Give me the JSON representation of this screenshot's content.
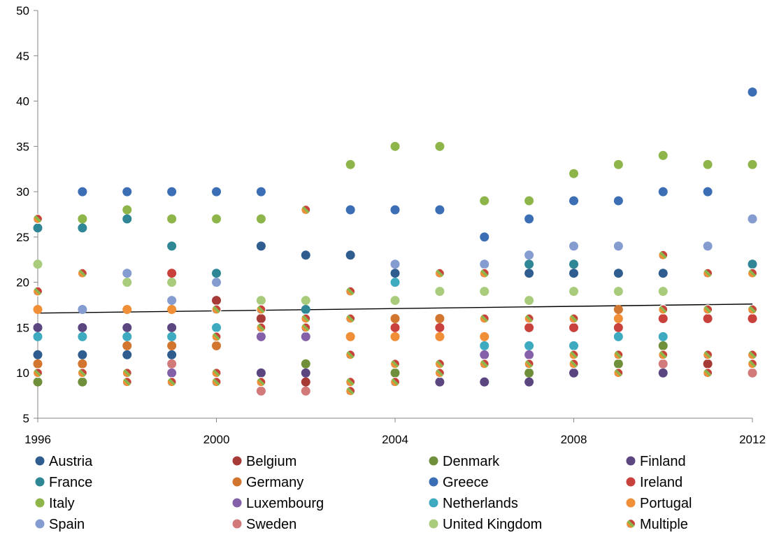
{
  "chart_data": {
    "type": "scatter",
    "title": "",
    "xlabel": "",
    "ylabel": "",
    "xlim": [
      1996,
      2012
    ],
    "ylim": [
      5,
      50
    ],
    "x_ticks": [
      1996,
      2000,
      2004,
      2008,
      2012
    ],
    "y_ticks": [
      5,
      10,
      15,
      20,
      25,
      30,
      35,
      40,
      45,
      50
    ],
    "grid": false,
    "legend_position": "bottom",
    "trendline": {
      "x": [
        1996,
        2012
      ],
      "y": [
        16.6,
        17.6
      ],
      "color": "#000000"
    },
    "series": [
      {
        "name": "Austria",
        "color": "#2f5d8f",
        "points": [
          [
            1996,
            12
          ],
          [
            1997,
            12
          ],
          [
            1998,
            12
          ],
          [
            1999,
            12
          ],
          [
            2001,
            24
          ],
          [
            2002,
            23
          ],
          [
            2003,
            23
          ],
          [
            2004,
            21
          ],
          [
            2007,
            21
          ],
          [
            2008,
            21
          ],
          [
            2009,
            21
          ],
          [
            2010,
            21
          ]
        ]
      },
      {
        "name": "Belgium",
        "color": "#a63a37",
        "points": [
          [
            2000,
            18
          ],
          [
            2001,
            16
          ],
          [
            2002,
            9
          ],
          [
            2011,
            11
          ]
        ]
      },
      {
        "name": "Denmark",
        "color": "#6f8f3a",
        "points": [
          [
            1996,
            9
          ],
          [
            1997,
            9
          ],
          [
            2002,
            11
          ],
          [
            2004,
            10
          ],
          [
            2007,
            10
          ],
          [
            2009,
            11
          ],
          [
            2010,
            13
          ]
        ]
      },
      {
        "name": "Finland",
        "color": "#5c4680",
        "points": [
          [
            1996,
            15
          ],
          [
            1997,
            15
          ],
          [
            1998,
            15
          ],
          [
            1999,
            15
          ],
          [
            2001,
            10
          ],
          [
            2002,
            10
          ],
          [
            2005,
            9
          ],
          [
            2006,
            9
          ],
          [
            2007,
            9
          ],
          [
            2008,
            10
          ],
          [
            2010,
            10
          ]
        ]
      },
      {
        "name": "France",
        "color": "#2f8795",
        "points": [
          [
            1996,
            26
          ],
          [
            1997,
            26
          ],
          [
            1998,
            27
          ],
          [
            1999,
            24
          ],
          [
            2000,
            21
          ],
          [
            2002,
            17
          ],
          [
            2007,
            22
          ],
          [
            2008,
            22
          ],
          [
            2012,
            22
          ]
        ]
      },
      {
        "name": "Germany",
        "color": "#d2752e",
        "points": [
          [
            1996,
            11
          ],
          [
            1997,
            11
          ],
          [
            1998,
            13
          ],
          [
            1999,
            13
          ],
          [
            2000,
            13
          ],
          [
            2004,
            16
          ],
          [
            2005,
            16
          ],
          [
            2009,
            17
          ]
        ]
      },
      {
        "name": "Greece",
        "color": "#3b6eb5",
        "points": [
          [
            1997,
            30
          ],
          [
            1998,
            30
          ],
          [
            1999,
            30
          ],
          [
            2000,
            30
          ],
          [
            2001,
            30
          ],
          [
            2003,
            28
          ],
          [
            2004,
            28
          ],
          [
            2005,
            28
          ],
          [
            2006,
            25
          ],
          [
            2007,
            27
          ],
          [
            2008,
            29
          ],
          [
            2009,
            29
          ],
          [
            2010,
            30
          ],
          [
            2011,
            30
          ],
          [
            2012,
            41
          ]
        ]
      },
      {
        "name": "Ireland",
        "color": "#c9413d",
        "points": [
          [
            1999,
            21
          ],
          [
            2004,
            15
          ],
          [
            2005,
            15
          ],
          [
            2007,
            15
          ],
          [
            2008,
            15
          ],
          [
            2009,
            15
          ],
          [
            2010,
            16
          ],
          [
            2011,
            16
          ],
          [
            2012,
            16
          ]
        ]
      },
      {
        "name": "Italy",
        "color": "#8db54a",
        "points": [
          [
            1997,
            27
          ],
          [
            1998,
            28
          ],
          [
            1999,
            27
          ],
          [
            2000,
            27
          ],
          [
            2001,
            27
          ],
          [
            2003,
            33
          ],
          [
            2004,
            35
          ],
          [
            2005,
            35
          ],
          [
            2006,
            29
          ],
          [
            2007,
            29
          ],
          [
            2008,
            32
          ],
          [
            2009,
            33
          ],
          [
            2010,
            34
          ],
          [
            2011,
            33
          ],
          [
            2012,
            33
          ]
        ]
      },
      {
        "name": "Luxembourg",
        "color": "#8360a8",
        "points": [
          [
            1999,
            10
          ],
          [
            2001,
            14
          ],
          [
            2002,
            14
          ],
          [
            2006,
            12
          ],
          [
            2007,
            12
          ]
        ]
      },
      {
        "name": "Netherlands",
        "color": "#3daabf",
        "points": [
          [
            1996,
            14
          ],
          [
            1997,
            14
          ],
          [
            1998,
            14
          ],
          [
            1999,
            14
          ],
          [
            2000,
            15
          ],
          [
            2004,
            20
          ],
          [
            2006,
            13
          ],
          [
            2007,
            13
          ],
          [
            2008,
            13
          ],
          [
            2009,
            14
          ],
          [
            2010,
            14
          ]
        ]
      },
      {
        "name": "Portugal",
        "color": "#f08f37",
        "points": [
          [
            1996,
            17
          ],
          [
            1998,
            17
          ],
          [
            1999,
            17
          ],
          [
            2003,
            14
          ],
          [
            2004,
            14
          ],
          [
            2005,
            14
          ],
          [
            2006,
            14
          ],
          [
            2009,
            16
          ]
        ]
      },
      {
        "name": "Spain",
        "color": "#849ccf",
        "points": [
          [
            1997,
            17
          ],
          [
            1998,
            21
          ],
          [
            1999,
            18
          ],
          [
            2000,
            20
          ],
          [
            2004,
            22
          ],
          [
            2006,
            22
          ],
          [
            2007,
            23
          ],
          [
            2008,
            24
          ],
          [
            2009,
            24
          ],
          [
            2011,
            24
          ],
          [
            2012,
            27
          ]
        ]
      },
      {
        "name": "Sweden",
        "color": "#d2797a",
        "points": [
          [
            1999,
            11
          ],
          [
            2001,
            8
          ],
          [
            2002,
            8
          ],
          [
            2010,
            11
          ],
          [
            2012,
            10
          ]
        ]
      },
      {
        "name": "United Kingdom",
        "color": "#a9cb7c",
        "points": [
          [
            1996,
            22
          ],
          [
            1998,
            20
          ],
          [
            1999,
            20
          ],
          [
            2001,
            18
          ],
          [
            2002,
            18
          ],
          [
            2004,
            18
          ],
          [
            2005,
            19
          ],
          [
            2006,
            19
          ],
          [
            2007,
            18
          ],
          [
            2008,
            19
          ],
          [
            2009,
            19
          ],
          [
            2010,
            19
          ]
        ]
      },
      {
        "name": "Multiple",
        "color": "multicolor",
        "points": [
          [
            1996,
            27
          ],
          [
            1996,
            19
          ],
          [
            1996,
            10
          ],
          [
            1997,
            21
          ],
          [
            1997,
            10
          ],
          [
            1998,
            10
          ],
          [
            1998,
            9
          ],
          [
            1999,
            9
          ],
          [
            2000,
            17
          ],
          [
            2000,
            14
          ],
          [
            2000,
            10
          ],
          [
            2000,
            9
          ],
          [
            2001,
            17
          ],
          [
            2001,
            15
          ],
          [
            2001,
            9
          ],
          [
            2002,
            28
          ],
          [
            2002,
            16
          ],
          [
            2002,
            15
          ],
          [
            2003,
            19
          ],
          [
            2003,
            16
          ],
          [
            2003,
            12
          ],
          [
            2003,
            9
          ],
          [
            2003,
            8
          ],
          [
            2004,
            11
          ],
          [
            2004,
            9
          ],
          [
            2005,
            21
          ],
          [
            2005,
            11
          ],
          [
            2005,
            10
          ],
          [
            2006,
            21
          ],
          [
            2006,
            16
          ],
          [
            2006,
            11
          ],
          [
            2007,
            16
          ],
          [
            2007,
            11
          ],
          [
            2008,
            16
          ],
          [
            2008,
            12
          ],
          [
            2008,
            11
          ],
          [
            2009,
            12
          ],
          [
            2009,
            10
          ],
          [
            2010,
            23
          ],
          [
            2010,
            17
          ],
          [
            2010,
            12
          ],
          [
            2011,
            21
          ],
          [
            2011,
            17
          ],
          [
            2011,
            12
          ],
          [
            2011,
            10
          ],
          [
            2012,
            21
          ],
          [
            2012,
            17
          ],
          [
            2012,
            12
          ],
          [
            2012,
            11
          ]
        ]
      }
    ],
    "multicolor_palette": [
      "#2f5d8f",
      "#f08f37",
      "#8db54a",
      "#c9413d",
      "#f2c82e"
    ]
  }
}
